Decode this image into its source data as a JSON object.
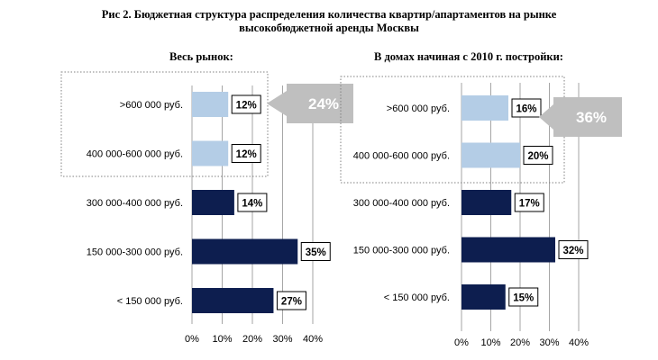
{
  "figure": {
    "title_line1": "Рис 2. Бюджетная структура распределения количества квартир/апартаментов на рынке",
    "title_line2": "высокобюджетной аренды Москвы"
  },
  "colors": {
    "light_bar": "#b4cde6",
    "dark_bar": "#0d1e4f",
    "gridline": "#a6a6a6",
    "callout": "#bfbfbf"
  },
  "chart_data": [
    {
      "type": "bar",
      "orientation": "horizontal",
      "title": "Весь рынок:",
      "categories": [
        ">600 000 руб.",
        "400 000-600 000 руб.",
        "300 000-400 000 руб.",
        "150 000-300 000 руб.",
        "< 150 000 руб."
      ],
      "values": [
        12,
        12,
        14,
        35,
        27
      ],
      "value_labels": [
        "12%",
        "12%",
        "14%",
        "35%",
        "27%"
      ],
      "highlighted": [
        true,
        true,
        false,
        false,
        false
      ],
      "x_ticks": [
        0,
        10,
        20,
        30,
        40
      ],
      "x_tick_labels": [
        "0%",
        "10%",
        "20%",
        "30%",
        "40%"
      ],
      "xlim": [
        0,
        40
      ],
      "callout": "24%",
      "grid": true
    },
    {
      "type": "bar",
      "orientation": "horizontal",
      "title": "В домах начиная с 2010 г. постройки:",
      "categories": [
        ">600 000 руб.",
        "400 000-600 000 руб.",
        "300 000-400 000 руб.",
        "150 000-300 000 руб.",
        "< 150 000 руб."
      ],
      "values": [
        16,
        20,
        17,
        32,
        15
      ],
      "value_labels": [
        "16%",
        "20%",
        "17%",
        "32%",
        "15%"
      ],
      "highlighted": [
        true,
        true,
        false,
        false,
        false
      ],
      "x_ticks": [
        0,
        10,
        20,
        30,
        40
      ],
      "x_tick_labels": [
        "0%",
        "10%",
        "20%",
        "30%",
        "40%"
      ],
      "xlim": [
        0,
        40
      ],
      "callout": "36%",
      "grid": true
    }
  ]
}
